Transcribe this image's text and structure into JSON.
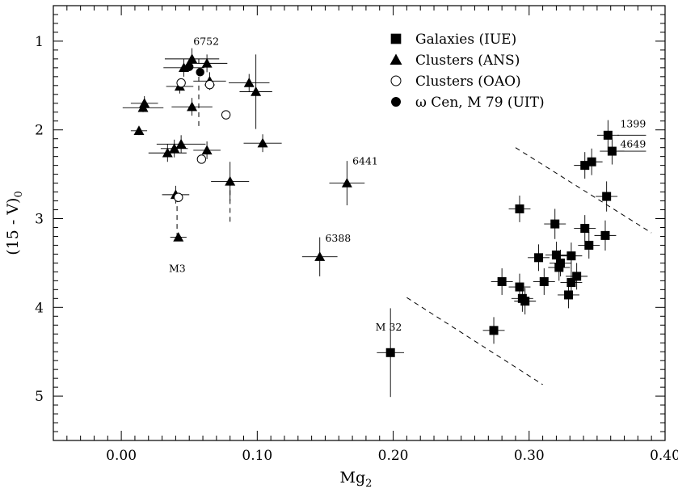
{
  "chart_data": {
    "type": "scatter",
    "xlabel": "Mg",
    "xlabel_sub": "2",
    "ylabel": "(15 - V)",
    "ylabel_sub": "0",
    "xlim": [
      -0.05,
      0.4
    ],
    "ylim": [
      0.6,
      5.5
    ],
    "y_inverted": true,
    "grid": false,
    "legend_position": "top-right",
    "x_ticks": [
      0.0,
      0.1,
      0.2,
      0.3,
      0.4
    ],
    "x_tick_labels": [
      "0.00",
      "0.10",
      "0.20",
      "0.30",
      "0.40"
    ],
    "y_ticks": [
      1,
      2,
      3,
      4,
      5
    ],
    "y_tick_labels": [
      "1",
      "2",
      "3",
      "4",
      "5"
    ],
    "series": [
      {
        "name": "Galaxies (IUE)",
        "marker": "filled-square",
        "points": [
          {
            "x": 0.358,
            "y": 2.06,
            "ex": 0.008,
            "ey": 0.17
          },
          {
            "x": 0.361,
            "y": 2.24,
            "ex": 0.009,
            "ey": 0.15
          },
          {
            "x": 0.341,
            "y": 2.4,
            "ex": 0.008,
            "ey": 0.15
          },
          {
            "x": 0.346,
            "y": 2.36,
            "ex": 0.008,
            "ey": 0.15
          },
          {
            "x": 0.357,
            "y": 2.75,
            "ex": 0.008,
            "ey": 0.17
          },
          {
            "x": 0.356,
            "y": 3.19,
            "ex": 0.008,
            "ey": 0.17
          },
          {
            "x": 0.341,
            "y": 3.11,
            "ex": 0.008,
            "ey": 0.15
          },
          {
            "x": 0.344,
            "y": 3.3,
            "ex": 0.008,
            "ey": 0.15
          },
          {
            "x": 0.319,
            "y": 3.06,
            "ex": 0.008,
            "ey": 0.17
          },
          {
            "x": 0.32,
            "y": 3.41,
            "ex": 0.008,
            "ey": 0.15
          },
          {
            "x": 0.323,
            "y": 3.5,
            "ex": 0.008,
            "ey": 0.15
          },
          {
            "x": 0.322,
            "y": 3.55,
            "ex": 0.008,
            "ey": 0.15
          },
          {
            "x": 0.331,
            "y": 3.42,
            "ex": 0.008,
            "ey": 0.15
          },
          {
            "x": 0.307,
            "y": 3.44,
            "ex": 0.008,
            "ey": 0.15
          },
          {
            "x": 0.335,
            "y": 3.65,
            "ex": 0.008,
            "ey": 0.15
          },
          {
            "x": 0.331,
            "y": 3.72,
            "ex": 0.008,
            "ey": 0.15
          },
          {
            "x": 0.311,
            "y": 3.71,
            "ex": 0.008,
            "ey": 0.15
          },
          {
            "x": 0.329,
            "y": 3.86,
            "ex": 0.008,
            "ey": 0.15
          },
          {
            "x": 0.293,
            "y": 2.89,
            "ex": 0.008,
            "ey": 0.15
          },
          {
            "x": 0.28,
            "y": 3.71,
            "ex": 0.008,
            "ey": 0.15
          },
          {
            "x": 0.293,
            "y": 3.77,
            "ex": 0.008,
            "ey": 0.15
          },
          {
            "x": 0.295,
            "y": 3.9,
            "ex": 0.008,
            "ey": 0.15
          },
          {
            "x": 0.297,
            "y": 3.93,
            "ex": 0.008,
            "ey": 0.15
          },
          {
            "x": 0.274,
            "y": 4.26,
            "ex": 0.008,
            "ey": 0.15
          },
          {
            "x": 0.198,
            "y": 4.51,
            "ex": 0.01,
            "ey": 0.5
          }
        ]
      },
      {
        "name": "Clusters (ANS)",
        "marker": "filled-triangle",
        "points": [
          {
            "x": 0.052,
            "y": 1.2,
            "ex": 0.02,
            "ey": 0.12
          },
          {
            "x": 0.046,
            "y": 1.3,
            "ex": 0.015,
            "ey": 0.1
          },
          {
            "x": 0.063,
            "y": 1.25,
            "ex": 0.015,
            "ey": 0.1
          },
          {
            "x": 0.065,
            "y": 1.45,
            "ex": 0.012,
            "ey": 0.1
          },
          {
            "x": 0.043,
            "y": 1.51,
            "ex": 0.01,
            "ey": 0.08
          },
          {
            "x": 0.052,
            "y": 1.74,
            "ex": 0.015,
            "ey": 0.1
          },
          {
            "x": 0.094,
            "y": 1.47,
            "ex": 0.015,
            "ey": 0.1
          },
          {
            "x": 0.099,
            "y": 1.57,
            "ex": 0.012,
            "ey": 0.42
          },
          {
            "x": 0.017,
            "y": 1.7,
            "ex": 0.01,
            "ey": 0.08
          },
          {
            "x": 0.016,
            "y": 1.75,
            "ex": 0.015,
            "ey": 0.05
          },
          {
            "x": 0.013,
            "y": 2.01,
            "ex": 0.006,
            "ey": 0.05
          },
          {
            "x": 0.104,
            "y": 2.15,
            "ex": 0.014,
            "ey": 0.1
          },
          {
            "x": 0.044,
            "y": 2.16,
            "ex": 0.018,
            "ey": 0.1
          },
          {
            "x": 0.034,
            "y": 2.26,
            "ex": 0.014,
            "ey": 0.1
          },
          {
            "x": 0.039,
            "y": 2.21,
            "ex": 0.01,
            "ey": 0.1
          },
          {
            "x": 0.063,
            "y": 2.23,
            "ex": 0.01,
            "ey": 0.1
          },
          {
            "x": 0.08,
            "y": 2.58,
            "ex": 0.014,
            "ey": 0.22
          },
          {
            "x": 0.04,
            "y": 2.73,
            "ex": 0.01,
            "ey": 0.1
          },
          {
            "x": 0.042,
            "y": 3.21,
            "ex": 0.006,
            "ey": 0.04
          },
          {
            "x": 0.166,
            "y": 2.6,
            "ex": 0.013,
            "ey": 0.25
          },
          {
            "x": 0.146,
            "y": 3.43,
            "ex": 0.013,
            "ey": 0.22
          }
        ]
      },
      {
        "name": "Clusters (OAO)",
        "marker": "open-circle",
        "points": [
          {
            "x": 0.044,
            "y": 1.47
          },
          {
            "x": 0.065,
            "y": 1.49
          },
          {
            "x": 0.077,
            "y": 1.83
          },
          {
            "x": 0.059,
            "y": 2.33
          },
          {
            "x": 0.042,
            "y": 2.76
          }
        ]
      },
      {
        "name": "ω Cen, M 79 (UIT)",
        "marker": "filled-circle",
        "points": [
          {
            "x": 0.058,
            "y": 1.35
          },
          {
            "x": 0.05,
            "y": 1.29
          }
        ]
      }
    ],
    "reference_lines": [
      {
        "x": [
          0.29,
          0.39
        ],
        "y": [
          2.2,
          3.16
        ],
        "style": "dashed"
      },
      {
        "x": [
          0.21,
          0.31
        ],
        "y": [
          3.89,
          4.87
        ],
        "style": "dashed"
      }
    ],
    "vertical_dashed_links": [
      {
        "x": 0.057,
        "y": [
          1.2,
          2.0
        ]
      },
      {
        "x": 0.041,
        "y": [
          2.76,
          3.21
        ]
      },
      {
        "x": 0.08,
        "y": [
          2.58,
          3.05
        ]
      }
    ],
    "annotations": [
      {
        "text": "6752",
        "x": 0.053,
        "y": 1.04,
        "anchor": "start"
      },
      {
        "text": "6441",
        "x": 0.17,
        "y": 2.39,
        "anchor": "start"
      },
      {
        "text": "6388",
        "x": 0.15,
        "y": 3.26,
        "anchor": "start"
      },
      {
        "text": "M3",
        "x": 0.035,
        "y": 3.6,
        "anchor": "start"
      },
      {
        "text": "M 32",
        "x": 0.187,
        "y": 4.26,
        "anchor": "start"
      },
      {
        "text": "1399",
        "x": 0.367,
        "y": 1.97,
        "anchor": "start"
      },
      {
        "text": "4649",
        "x": 0.367,
        "y": 2.2,
        "anchor": "start"
      }
    ],
    "annotation_leaders": [
      {
        "x": [
          0.365,
          0.386
        ],
        "y": [
          2.06,
          2.06
        ]
      },
      {
        "x": [
          0.365,
          0.386
        ],
        "y": [
          2.24,
          2.24
        ]
      }
    ]
  }
}
